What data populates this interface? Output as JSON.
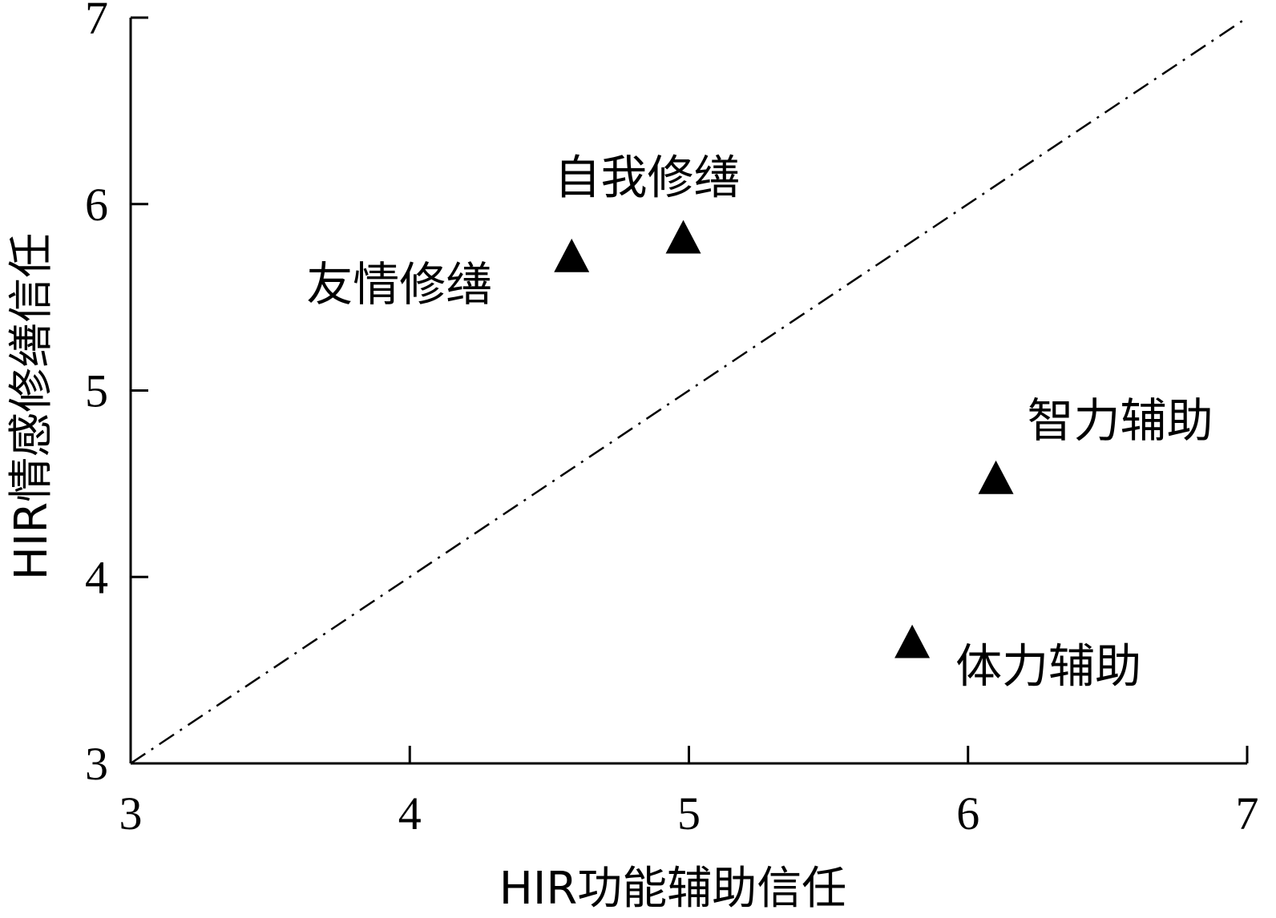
{
  "chart_data": {
    "type": "scatter",
    "title": "",
    "xlabel": "HIR功能辅助信任",
    "ylabel": "HIR情感修缮信任",
    "xlim": [
      3,
      7
    ],
    "ylim": [
      3,
      7
    ],
    "xticks": [
      "3",
      "4",
      "5",
      "6",
      "7"
    ],
    "yticks": [
      "3",
      "4",
      "5",
      "6",
      "7"
    ],
    "grid": false,
    "reference_line": {
      "style": "dash-dot",
      "from": [
        3,
        3
      ],
      "to": [
        7,
        7
      ]
    },
    "marker": "triangle",
    "points": [
      {
        "label": "自我修缮",
        "x": 4.98,
        "y": 5.82
      },
      {
        "label": "友情修缮",
        "x": 4.58,
        "y": 5.72
      },
      {
        "label": "智力辅助",
        "x": 6.1,
        "y": 4.53
      },
      {
        "label": "体力辅助",
        "x": 5.8,
        "y": 3.65
      }
    ]
  }
}
